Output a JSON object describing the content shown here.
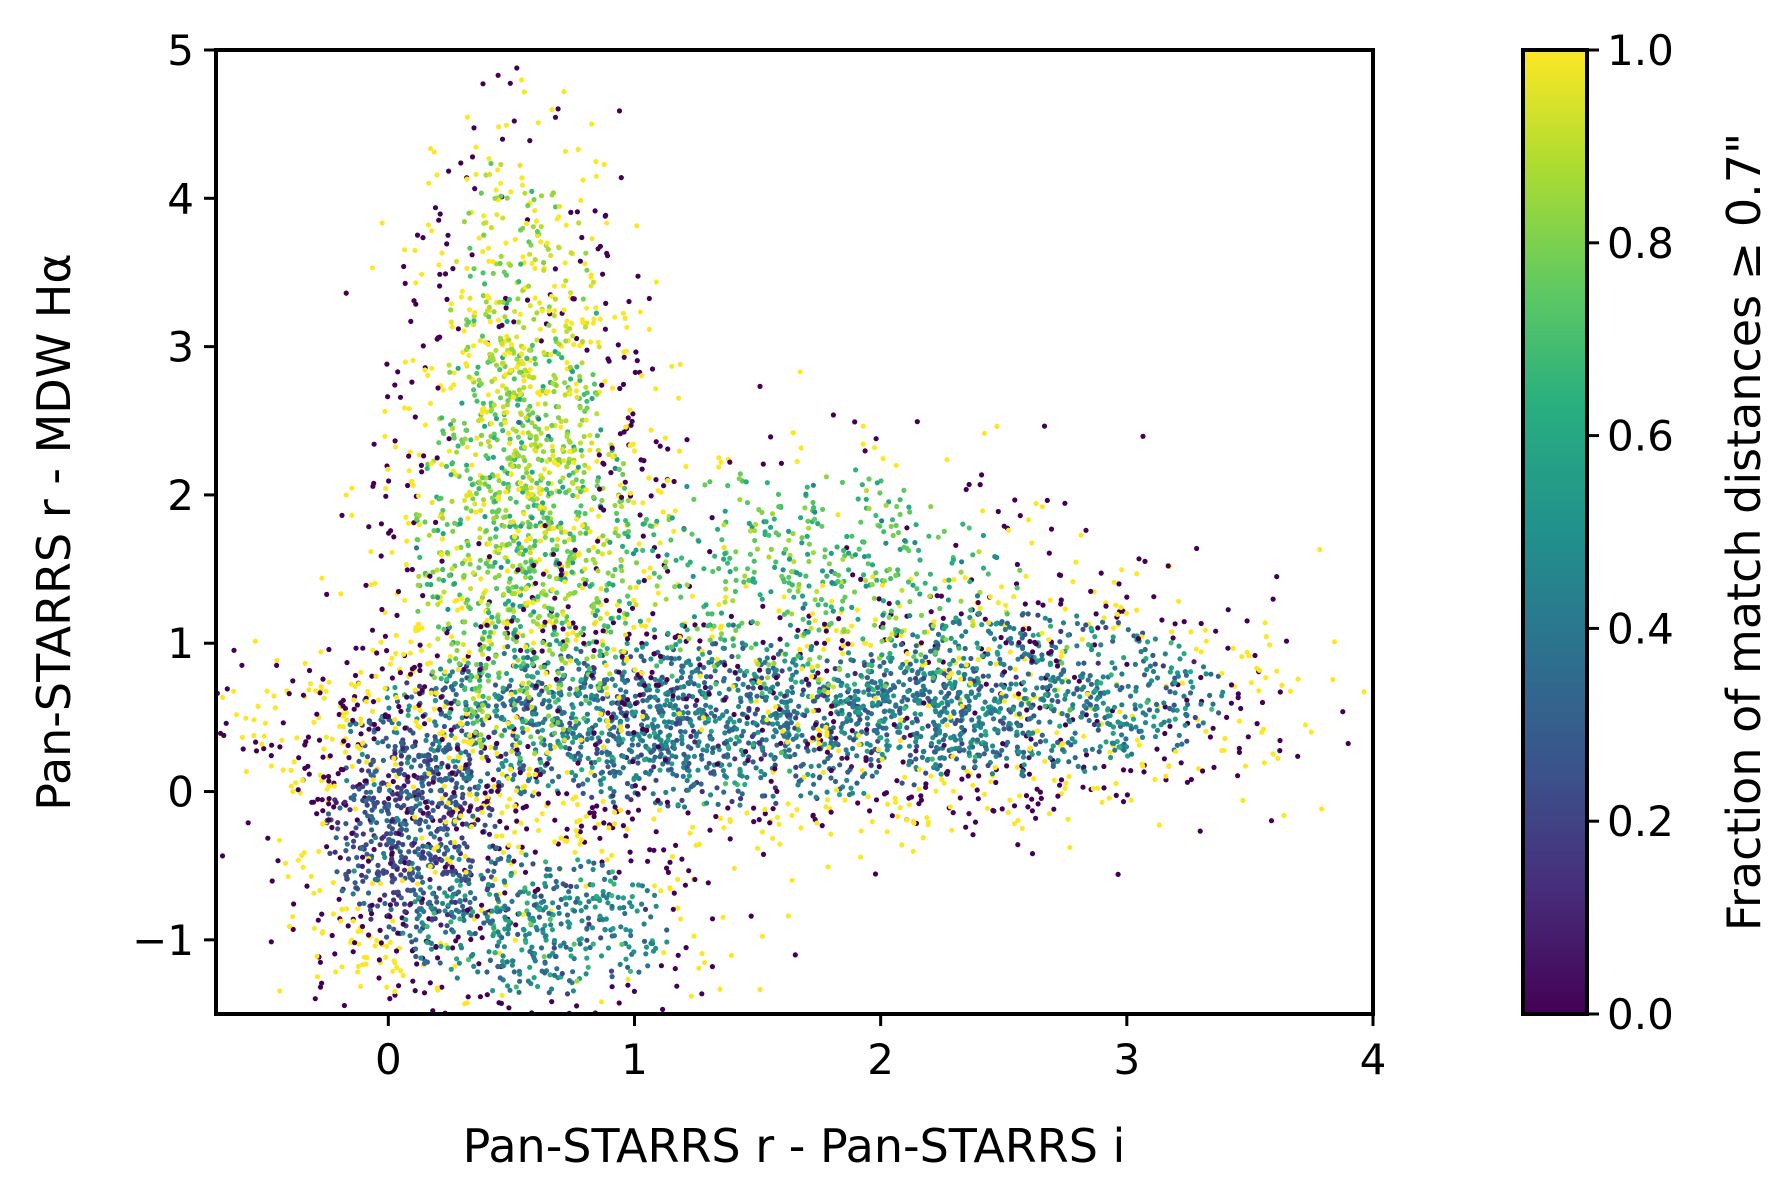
{
  "chart_data": {
    "type": "scatter",
    "xlabel": "Pan-STARRS r - Pan-STARRS i",
    "ylabel": "Pan-STARRS r - MDW Hα",
    "xlim": [
      -0.7,
      4.0
    ],
    "ylim": [
      -1.5,
      5.0
    ],
    "xticks": [
      0,
      1,
      2,
      3,
      4
    ],
    "xtick_labels": [
      "0",
      "1",
      "2",
      "3",
      "4"
    ],
    "yticks": [
      -1,
      0,
      1,
      2,
      3,
      4,
      5
    ],
    "ytick_labels": [
      "−1",
      "0",
      "1",
      "2",
      "3",
      "4",
      "5"
    ],
    "grid": false,
    "colorbar": {
      "label": "Fraction of match distances ≥ 0.7\"",
      "colormap": "viridis",
      "range": [
        0.0,
        1.0
      ],
      "ticks": [
        0.0,
        0.2,
        0.4,
        0.6,
        0.8,
        1.0
      ],
      "tick_labels": [
        "0.0",
        "0.2",
        "0.4",
        "0.6",
        "0.8",
        "1.0"
      ],
      "colors": [
        "#440154",
        "#3b528b",
        "#21918c",
        "#5ec962",
        "#fde725"
      ]
    },
    "point_regions": [
      {
        "cx": 1.2,
        "cy": 0.45,
        "sx": 0.85,
        "sy": 0.35,
        "value": 0.38,
        "weight": 0.3
      },
      {
        "cx": 0.1,
        "cy": -0.3,
        "sx": 0.22,
        "sy": 0.45,
        "value": 0.25,
        "weight": 0.12
      },
      {
        "cx": 0.55,
        "cy": 1.6,
        "sx": 0.28,
        "sy": 0.9,
        "value": 0.78,
        "weight": 0.18
      },
      {
        "cx": 0.55,
        "cy": 3.0,
        "sx": 0.2,
        "sy": 0.85,
        "value": 0.92,
        "weight": 0.08
      },
      {
        "cx": 2.6,
        "cy": 0.65,
        "sx": 0.5,
        "sy": 0.35,
        "value": 0.42,
        "weight": 0.14
      },
      {
        "cx": 1.7,
        "cy": 1.4,
        "sx": 0.55,
        "sy": 0.5,
        "value": 0.7,
        "weight": 0.1
      },
      {
        "cx": 0.6,
        "cy": -0.9,
        "sx": 0.35,
        "sy": 0.3,
        "value": 0.45,
        "weight": 0.08
      }
    ]
  }
}
